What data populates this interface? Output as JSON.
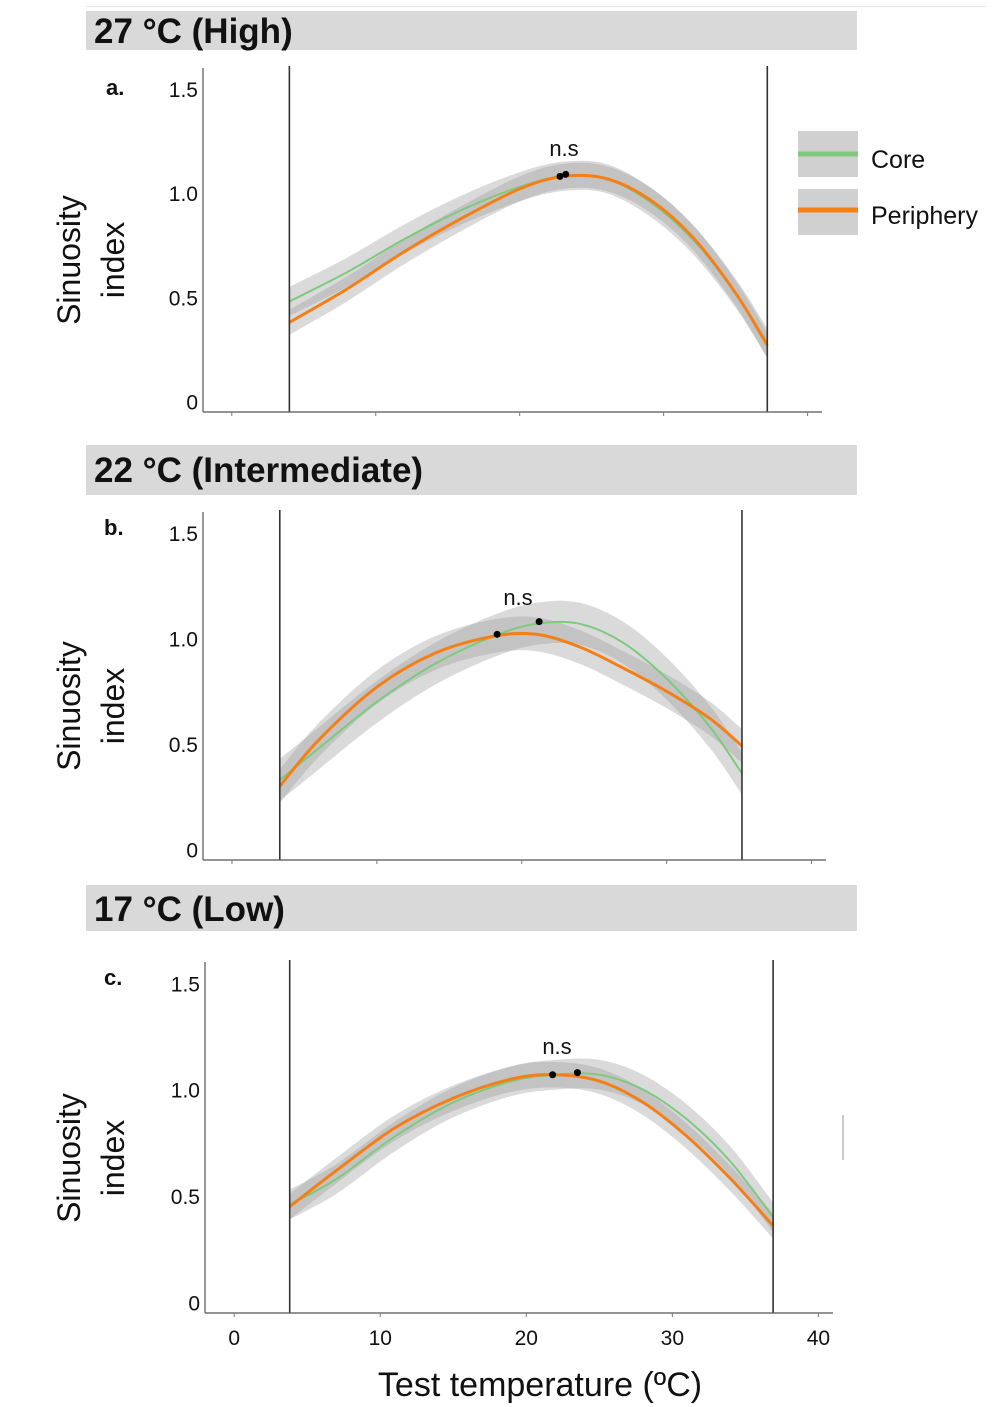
{
  "legend": {
    "items": [
      {
        "label": "Core",
        "color": "#7fc97f"
      },
      {
        "label": "Periphery",
        "color": "#f57f17"
      }
    ]
  },
  "panels": [
    {
      "banner": "27 °C (High)",
      "letter": "a.",
      "annotation": "n.s"
    },
    {
      "banner": "22 °C (Intermediate)",
      "letter": "b.",
      "annotation": "n.s"
    },
    {
      "banner": "17 °C (Low)",
      "letter": "c.",
      "annotation": "n.s"
    }
  ],
  "axis": {
    "ylabel_line1": "Sinuosity",
    "ylabel_line2": "index",
    "xlabel": "Test temperature (ºC)"
  },
  "chart_data": [
    {
      "type": "line",
      "title": "27 °C (High)",
      "xlabel": "Test temperature (ºC)",
      "ylabel": "Sinuosity index",
      "xlim": [
        -2,
        41
      ],
      "ylim": [
        -0.05,
        1.6
      ],
      "y_ticks": [
        "0",
        "0.5",
        "1.0",
        "1.5"
      ],
      "y_tick_values": [
        0,
        0.5,
        1.0,
        1.5
      ],
      "x_ticks": [],
      "vlines": [
        4,
        37.2
      ],
      "annotation": "n.s",
      "peaks": [
        {
          "x": 22.8,
          "y": 1.08
        },
        {
          "x": 23.2,
          "y": 1.09
        }
      ],
      "series": [
        {
          "name": "Core",
          "color": "#7fc97f",
          "x": [
            4,
            8,
            12,
            16,
            20,
            23,
            26,
            29,
            32,
            35,
            37.2
          ],
          "y": [
            0.48,
            0.62,
            0.78,
            0.92,
            1.03,
            1.08,
            1.07,
            0.96,
            0.78,
            0.52,
            0.28
          ],
          "band": 0.07
        },
        {
          "name": "Periphery",
          "color": "#f57f17",
          "x": [
            4,
            8,
            12,
            16,
            20,
            23,
            26,
            29,
            32,
            35,
            37.2
          ],
          "y": [
            0.38,
            0.54,
            0.72,
            0.88,
            1.02,
            1.08,
            1.07,
            0.97,
            0.79,
            0.52,
            0.27
          ],
          "band": 0.06
        }
      ]
    },
    {
      "type": "line",
      "title": "22 °C (Intermediate)",
      "xlabel": "Test temperature (ºC)",
      "ylabel": "Sinuosity index",
      "xlim": [
        -2,
        41
      ],
      "ylim": [
        -0.05,
        1.6
      ],
      "y_ticks": [
        "0",
        "0.5",
        "1.0",
        "1.5"
      ],
      "y_tick_values": [
        0,
        0.5,
        1.0,
        1.5
      ],
      "x_ticks": [],
      "vlines": [
        3.3,
        35.2
      ],
      "annotation": "n.s",
      "peaks": [
        {
          "x": 18.3,
          "y": 1.02
        },
        {
          "x": 21.2,
          "y": 1.08
        }
      ],
      "series": [
        {
          "name": "Core",
          "color": "#7fc97f",
          "x": [
            3.3,
            6,
            10,
            14,
            18,
            21,
            24,
            27,
            30,
            33,
            35.2
          ],
          "y": [
            0.33,
            0.48,
            0.7,
            0.88,
            1.01,
            1.07,
            1.07,
            0.98,
            0.81,
            0.58,
            0.36
          ],
          "band": 0.1
        },
        {
          "name": "Periphery",
          "color": "#f57f17",
          "x": [
            3.3,
            6,
            10,
            14,
            18,
            21,
            24,
            27,
            30,
            33,
            35.2
          ],
          "y": [
            0.3,
            0.52,
            0.77,
            0.93,
            1.01,
            1.02,
            0.96,
            0.86,
            0.75,
            0.62,
            0.49
          ],
          "band": 0.08
        }
      ]
    },
    {
      "type": "line",
      "title": "17 °C (Low)",
      "xlabel": "Test temperature (ºC)",
      "ylabel": "Sinuosity index",
      "xlim": [
        -2,
        41
      ],
      "ylim": [
        -0.05,
        1.6
      ],
      "y_ticks": [
        "0",
        "0.5",
        "1.0",
        "1.5"
      ],
      "y_tick_values": [
        0,
        0.5,
        1.0,
        1.5
      ],
      "x_ticks": [
        "0",
        "10",
        "20",
        "30",
        "40"
      ],
      "x_tick_values": [
        0,
        10,
        20,
        30,
        40
      ],
      "vlines": [
        3.8,
        36.9
      ],
      "annotation": "n.s",
      "peaks": [
        {
          "x": 21.8,
          "y": 1.07
        },
        {
          "x": 23.5,
          "y": 1.08
        }
      ],
      "series": [
        {
          "name": "Core",
          "color": "#7fc97f",
          "x": [
            3.8,
            7,
            11,
            15,
            19,
            22,
            25,
            28,
            31,
            34,
            36.9
          ],
          "y": [
            0.46,
            0.58,
            0.78,
            0.94,
            1.04,
            1.07,
            1.07,
            1.0,
            0.86,
            0.66,
            0.4
          ],
          "band": 0.07
        },
        {
          "name": "Periphery",
          "color": "#f57f17",
          "x": [
            3.8,
            7,
            11,
            15,
            19,
            22,
            25,
            28,
            31,
            34,
            36.9
          ],
          "y": [
            0.45,
            0.62,
            0.82,
            0.96,
            1.05,
            1.07,
            1.04,
            0.94,
            0.78,
            0.58,
            0.36
          ],
          "band": 0.06
        }
      ]
    }
  ]
}
